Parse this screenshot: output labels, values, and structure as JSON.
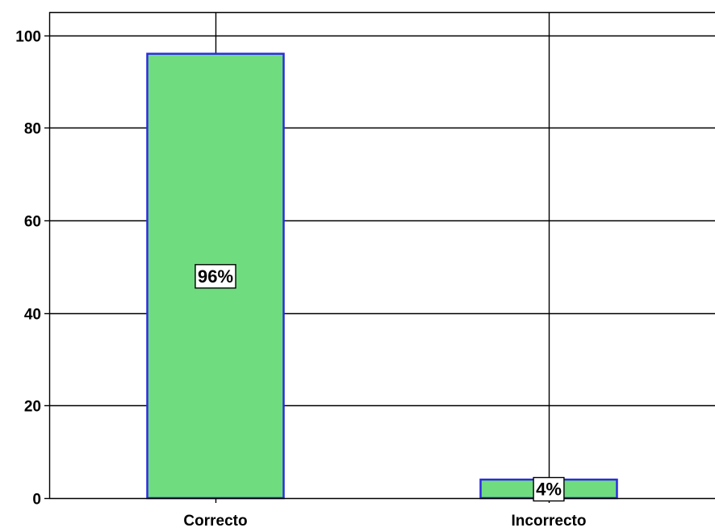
{
  "chart_data": {
    "type": "bar",
    "categories": [
      "Correcto",
      "Incorrecto"
    ],
    "values": [
      96,
      4
    ],
    "data_labels": [
      "96%",
      "4%"
    ],
    "title": "",
    "xlabel": "",
    "ylabel": "",
    "ylim": [
      0,
      105
    ],
    "yticks": [
      0,
      20,
      40,
      60,
      80,
      100
    ],
    "ytick_labels": [
      "0",
      "20",
      "40",
      "60",
      "80",
      "100"
    ],
    "grid": true,
    "legend": "none",
    "colors": {
      "bar_fill": "#70dc80",
      "bar_stroke": "#2b2be0",
      "gridline": "#000000",
      "label_box_fill": "#ffffff",
      "label_box_stroke": "#000000"
    }
  }
}
